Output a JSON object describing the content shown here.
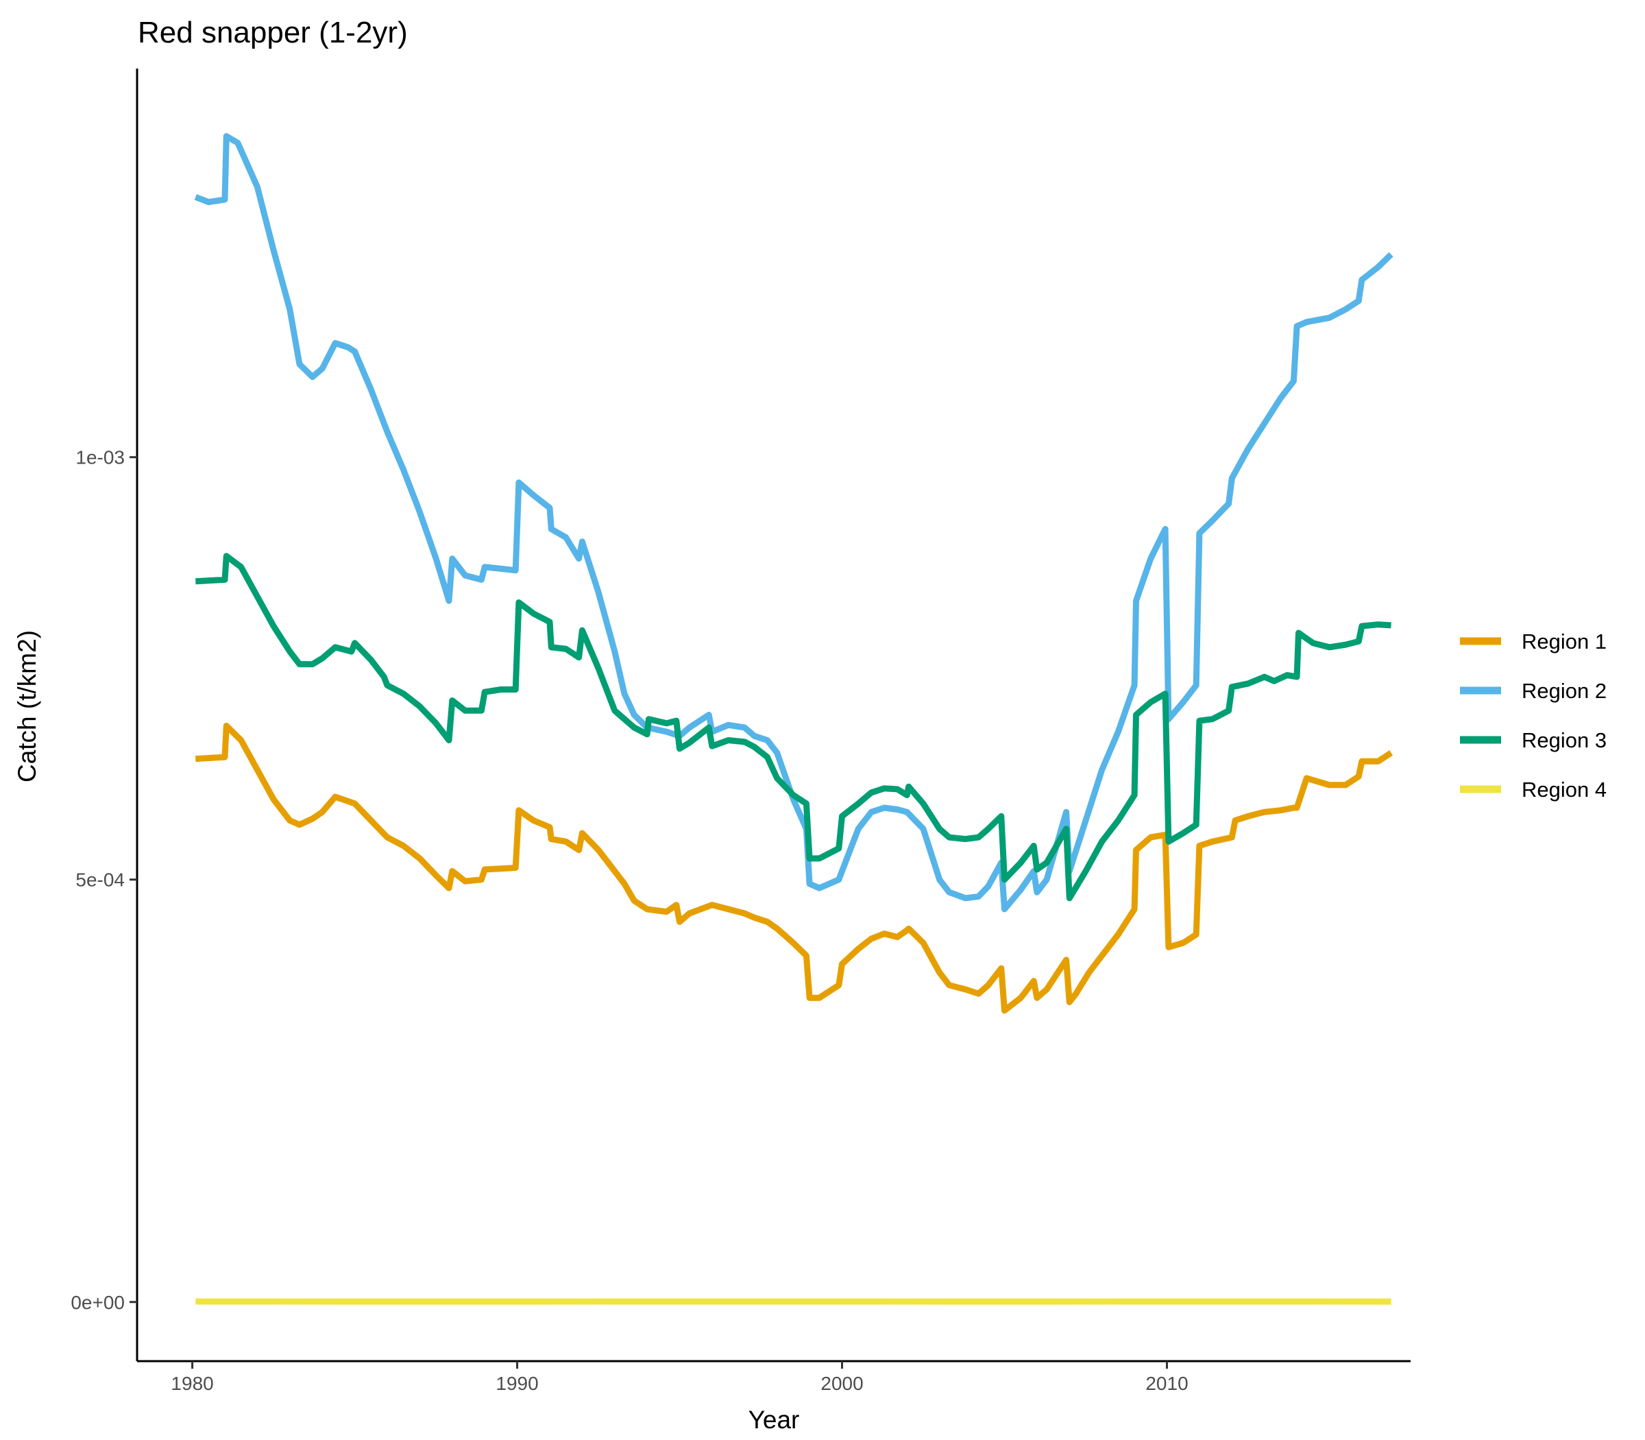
{
  "chart_data": {
    "type": "line",
    "title": "Red snapper (1-2yr)",
    "xlabel": "Year",
    "ylabel": "Catch (t/km2)",
    "xlim": [
      1978.3,
      2017.5
    ],
    "ylim": [
      -7e-05,
      0.00146
    ],
    "x_ticks": [
      1980,
      1990,
      2000,
      2010
    ],
    "x_tick_labels": [
      "1980",
      "1990",
      "2000",
      "2010"
    ],
    "y_ticks": [
      0,
      0.0005,
      0.001
    ],
    "y_tick_labels": [
      "0e+00",
      "5e-04",
      "1e-03"
    ],
    "grid": false,
    "legend_position": "right",
    "series": [
      {
        "name": "Region 1",
        "color": "#E69F00",
        "x": [
          1980.1,
          1981.0,
          1981.05,
          1981.5,
          1982.0,
          1982.5,
          1983.0,
          1983.3,
          1983.7,
          1984.0,
          1984.4,
          1985.0,
          1985.5,
          1986.0,
          1986.5,
          1987.0,
          1987.5,
          1987.9,
          1988.0,
          1988.4,
          1988.9,
          1989.0,
          1989.5,
          1989.95,
          1990.05,
          1990.5,
          1991.0,
          1991.05,
          1991.5,
          1991.9,
          1992.0,
          1992.5,
          1993.0,
          1993.3,
          1993.6,
          1994.0,
          1994.6,
          1994.9,
          1995.0,
          1995.3,
          1996.0,
          1996.5,
          1997.0,
          1997.3,
          1997.7,
          1998.0,
          1998.5,
          1998.9,
          1999.0,
          1999.3,
          1999.9,
          2000.0,
          2000.5,
          2000.9,
          2001.3,
          2001.7,
          2002.0,
          2002.05,
          2002.5,
          2003.0,
          2003.3,
          2003.8,
          2004.2,
          2004.5,
          2004.9,
          2005.0,
          2005.5,
          2005.9,
          2006.0,
          2006.3,
          2006.9,
          2007.0,
          2007.2,
          2007.6,
          2008.0,
          2008.5,
          2009.0,
          2009.05,
          2009.5,
          2009.95,
          2010.05,
          2010.5,
          2010.9,
          2011.0,
          2011.4,
          2012.0,
          2012.1,
          2012.5,
          2013.0,
          2013.5,
          2013.9,
          2014.0,
          2014.3,
          2015.0,
          2015.5,
          2015.9,
          2016.0,
          2016.5,
          2016.9
        ],
        "values": [
          0.000643,
          0.000645,
          0.000682,
          0.000665,
          0.00063,
          0.000595,
          0.00057,
          0.000565,
          0.000572,
          0.00058,
          0.000598,
          0.00059,
          0.00057,
          0.00055,
          0.00054,
          0.000525,
          0.000505,
          0.00049,
          0.00051,
          0.000498,
          0.0005,
          0.000512,
          0.000513,
          0.000514,
          0.000582,
          0.00057,
          0.000562,
          0.000548,
          0.000545,
          0.000535,
          0.000555,
          0.000535,
          0.00051,
          0.000495,
          0.000475,
          0.000465,
          0.000462,
          0.00047,
          0.00045,
          0.00046,
          0.00047,
          0.000465,
          0.00046,
          0.000455,
          0.00045,
          0.000442,
          0.000425,
          0.00041,
          0.00036,
          0.00036,
          0.000375,
          0.0004,
          0.000418,
          0.00043,
          0.000436,
          0.000432,
          0.00044,
          0.000442,
          0.000425,
          0.00039,
          0.000375,
          0.00037,
          0.000365,
          0.000375,
          0.000395,
          0.000345,
          0.00036,
          0.00038,
          0.00036,
          0.00037,
          0.000405,
          0.000355,
          0.000365,
          0.00039,
          0.00041,
          0.000435,
          0.000465,
          0.000535,
          0.00055,
          0.000553,
          0.00042,
          0.000425,
          0.000435,
          0.00054,
          0.000545,
          0.00055,
          0.00057,
          0.000575,
          0.00058,
          0.000582,
          0.000585,
          0.000585,
          0.00062,
          0.000612,
          0.000612,
          0.000622,
          0.00064,
          0.00064,
          0.00065
        ]
      },
      {
        "name": "Region 2",
        "color": "#56B4E9",
        "x": [
          1980.1,
          1980.5,
          1981.0,
          1981.05,
          1981.4,
          1982.0,
          1982.5,
          1983.0,
          1983.3,
          1983.7,
          1984.0,
          1984.4,
          1984.8,
          1985.0,
          1985.5,
          1986.0,
          1986.5,
          1987.0,
          1987.5,
          1987.9,
          1988.0,
          1988.4,
          1988.9,
          1989.0,
          1989.5,
          1989.95,
          1990.05,
          1990.5,
          1991.0,
          1991.05,
          1991.5,
          1991.9,
          1992.0,
          1992.5,
          1993.0,
          1993.3,
          1993.6,
          1994.0,
          1994.6,
          1995.0,
          1995.3,
          1995.9,
          1996.0,
          1996.5,
          1997.0,
          1997.3,
          1997.7,
          1998.0,
          1998.5,
          1998.9,
          1999.0,
          1999.3,
          1999.9,
          2000.0,
          2000.5,
          2000.9,
          2001.3,
          2001.7,
          2002.0,
          2002.5,
          2003.0,
          2003.3,
          2003.8,
          2004.2,
          2004.5,
          2004.9,
          2005.0,
          2005.5,
          2005.9,
          2006.0,
          2006.3,
          2006.9,
          2007.0,
          2007.5,
          2008.0,
          2008.5,
          2009.0,
          2009.05,
          2009.5,
          2009.95,
          2010.05,
          2010.5,
          2010.9,
          2011.0,
          2011.4,
          2011.9,
          2012.0,
          2012.5,
          2013.0,
          2013.5,
          2013.9,
          2014.0,
          2014.3,
          2015.0,
          2015.5,
          2015.9,
          2016.0,
          2016.5,
          2016.9
        ],
        "values": [
          0.001308,
          0.001302,
          0.001305,
          0.00138,
          0.001372,
          0.00132,
          0.001245,
          0.001175,
          0.00111,
          0.001095,
          0.001105,
          0.001135,
          0.00113,
          0.001125,
          0.00108,
          0.00103,
          0.000985,
          0.000935,
          0.00088,
          0.00083,
          0.00088,
          0.00086,
          0.000855,
          0.00087,
          0.000868,
          0.000866,
          0.00097,
          0.000955,
          0.00094,
          0.000915,
          0.000905,
          0.00088,
          0.0009,
          0.00084,
          0.00077,
          0.00072,
          0.000695,
          0.00068,
          0.000675,
          0.00067,
          0.00068,
          0.000695,
          0.000675,
          0.000683,
          0.00068,
          0.00067,
          0.000665,
          0.00065,
          0.000595,
          0.00056,
          0.000495,
          0.00049,
          0.0005,
          0.00051,
          0.00056,
          0.00058,
          0.000585,
          0.000583,
          0.00058,
          0.00056,
          0.0005,
          0.000485,
          0.000478,
          0.00048,
          0.000492,
          0.00052,
          0.000465,
          0.000488,
          0.00051,
          0.000485,
          0.0005,
          0.00058,
          0.00051,
          0.00057,
          0.00063,
          0.000675,
          0.00073,
          0.00083,
          0.00088,
          0.000915,
          0.00069,
          0.00071,
          0.00073,
          0.00091,
          0.000925,
          0.000945,
          0.000975,
          0.00101,
          0.00104,
          0.00107,
          0.00109,
          0.001155,
          0.00116,
          0.001165,
          0.001175,
          0.001185,
          0.00121,
          0.001225,
          0.00124
        ]
      },
      {
        "name": "Region 3",
        "color": "#009E73",
        "x": [
          1980.1,
          1981.0,
          1981.05,
          1981.5,
          1982.0,
          1982.5,
          1983.0,
          1983.3,
          1983.7,
          1984.0,
          1984.4,
          1984.9,
          1985.0,
          1985.5,
          1985.9,
          1986.0,
          1986.5,
          1987.0,
          1987.5,
          1987.9,
          1988.0,
          1988.4,
          1988.9,
          1989.0,
          1989.5,
          1989.95,
          1990.05,
          1990.5,
          1991.0,
          1991.05,
          1991.5,
          1991.9,
          1992.0,
          1992.5,
          1993.0,
          1993.3,
          1993.6,
          1994.0,
          1994.05,
          1994.6,
          1994.9,
          1995.0,
          1995.3,
          1995.9,
          1996.0,
          1996.5,
          1997.0,
          1997.3,
          1997.7,
          1998.0,
          1998.5,
          1998.9,
          1999.0,
          1999.3,
          1999.9,
          2000.0,
          2000.5,
          2000.9,
          2001.3,
          2001.7,
          2002.0,
          2002.05,
          2002.5,
          2003.0,
          2003.3,
          2003.8,
          2004.2,
          2004.5,
          2004.9,
          2005.0,
          2005.5,
          2005.9,
          2006.0,
          2006.3,
          2006.9,
          2007.0,
          2007.5,
          2008.0,
          2008.5,
          2009.0,
          2009.05,
          2009.5,
          2009.95,
          2010.05,
          2010.5,
          2010.9,
          2011.0,
          2011.4,
          2011.9,
          2012.0,
          2012.5,
          2013.0,
          2013.3,
          2013.7,
          2014.0,
          2014.05,
          2014.5,
          2015.0,
          2015.5,
          2015.9,
          2016.0,
          2016.5,
          2016.9
        ],
        "values": [
          0.000853,
          0.000855,
          0.000883,
          0.00087,
          0.000835,
          0.0008,
          0.00077,
          0.000755,
          0.000755,
          0.000762,
          0.000775,
          0.00077,
          0.00078,
          0.00076,
          0.00074,
          0.00073,
          0.00072,
          0.000705,
          0.000685,
          0.000665,
          0.000712,
          0.0007,
          0.0007,
          0.000722,
          0.000725,
          0.000725,
          0.000828,
          0.000815,
          0.000805,
          0.000775,
          0.000773,
          0.000763,
          0.000795,
          0.00075,
          0.0007,
          0.00069,
          0.00068,
          0.000672,
          0.00069,
          0.000685,
          0.000688,
          0.000655,
          0.000662,
          0.00068,
          0.000658,
          0.000665,
          0.000663,
          0.000657,
          0.000645,
          0.00062,
          0.0006,
          0.00059,
          0.000525,
          0.000525,
          0.000537,
          0.000575,
          0.00059,
          0.000603,
          0.000608,
          0.000607,
          0.0006,
          0.00061,
          0.00059,
          0.00056,
          0.00055,
          0.000548,
          0.00055,
          0.00056,
          0.000575,
          0.0005,
          0.00052,
          0.00054,
          0.000512,
          0.00052,
          0.00056,
          0.000478,
          0.00051,
          0.000545,
          0.00057,
          0.0006,
          0.000695,
          0.00071,
          0.00072,
          0.000545,
          0.000555,
          0.000565,
          0.000688,
          0.00069,
          0.0007,
          0.000728,
          0.000732,
          0.00074,
          0.000735,
          0.000742,
          0.00074,
          0.000792,
          0.00078,
          0.000775,
          0.000778,
          0.000782,
          0.0008,
          0.000802,
          0.000801
        ]
      },
      {
        "name": "Region 4",
        "color": "#F0E442",
        "x": [
          1980.1,
          1985.0,
          1990.0,
          1995.0,
          2000.0,
          2005.0,
          2010.0,
          2016.9
        ],
        "values": [
          6e-07,
          5e-07,
          5e-07,
          6e-07,
          6e-07,
          5e-07,
          6e-07,
          5e-07
        ]
      }
    ]
  }
}
